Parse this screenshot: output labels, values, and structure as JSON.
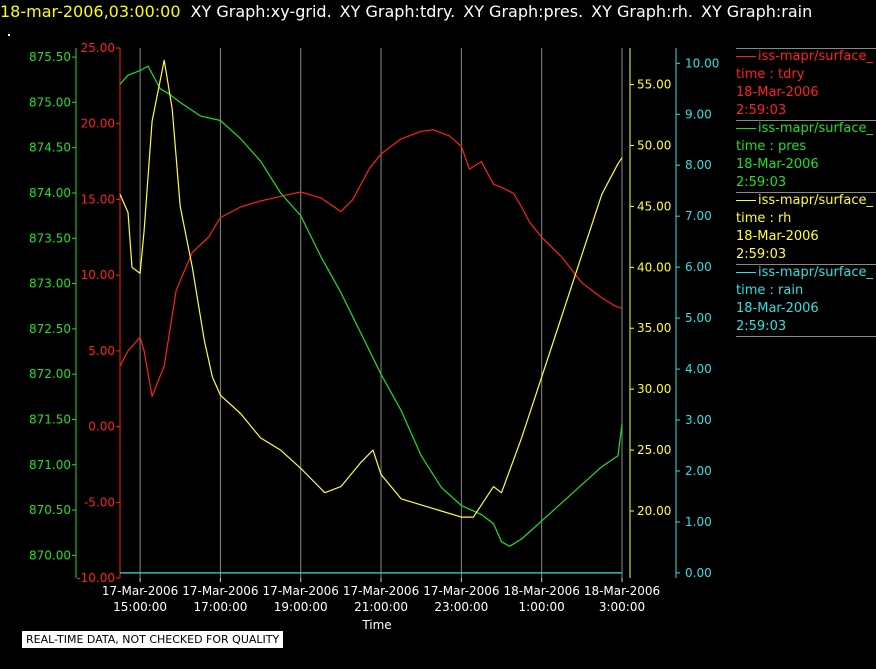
{
  "header": {
    "timestamp": "18-mar-2006,03:00:00",
    "graphs": [
      "XY Graph:xy-grid.",
      "XY Graph:tdry.",
      "XY Graph:pres.",
      "XY Graph:rh.",
      "XY Graph:rain"
    ]
  },
  "footer": {
    "note": "REAL-TIME DATA, NOT CHECKED FOR QUALITY"
  },
  "legend": [
    {
      "source": "iss-mapr/surface_",
      "label": "time : tdry",
      "date": "18-Mar-2006",
      "time": "2:59:03",
      "color": "#ff2020"
    },
    {
      "source": "iss-mapr/surface_",
      "label": "time : pres",
      "date": "18-Mar-2006",
      "time": "2:59:03",
      "color": "#20e020"
    },
    {
      "source": "iss-mapr/surface_",
      "label": "time : rh",
      "date": "18-Mar-2006",
      "time": "2:59:03",
      "color": "#ffff30"
    },
    {
      "source": "iss-mapr/surface_",
      "label": "time : rain",
      "date": "18-Mar-2006",
      "time": "2:59:03",
      "color": "#30e0e0"
    }
  ],
  "chart_data": {
    "type": "line",
    "xlabel": "Time",
    "x_ticks": [
      [
        "17-Mar-2006",
        "15:00:00"
      ],
      [
        "17-Mar-2006",
        "17:00:00"
      ],
      [
        "17-Mar-2006",
        "19:00:00"
      ],
      [
        "17-Mar-2006",
        "21:00:00"
      ],
      [
        "17-Mar-2006",
        "23:00:00"
      ],
      [
        "18-Mar-2006",
        "1:00:00"
      ],
      [
        "18-Mar-2006",
        "3:00:00"
      ]
    ],
    "xlim_hours": [
      14.5,
      27.0
    ],
    "grid": true,
    "legend_position": "right",
    "axes": {
      "pres": {
        "color": "#20e020",
        "ylim": [
          869.75,
          875.6
        ],
        "ticks": [
          "870.00",
          "870.50",
          "871.00",
          "871.50",
          "872.00",
          "872.50",
          "873.00",
          "873.50",
          "874.00",
          "874.50",
          "875.00",
          "875.50"
        ]
      },
      "tdry": {
        "color": "#ff2020",
        "ylim": [
          -10.0,
          25.0
        ],
        "ticks": [
          "-10.00",
          "-5.00",
          "0.00",
          "5.00",
          "10.00",
          "15.00",
          "20.00",
          "25.00"
        ]
      },
      "rh": {
        "color": "#ffff30",
        "ylim": [
          14.5,
          58.0
        ],
        "ticks": [
          "20.00",
          "25.00",
          "30.00",
          "35.00",
          "40.00",
          "45.00",
          "50.00",
          "55.00"
        ]
      },
      "rain": {
        "color": "#30e0e0",
        "ylim": [
          -0.1,
          10.3
        ],
        "ticks": [
          "0.00",
          "1.00",
          "2.00",
          "3.00",
          "4.00",
          "5.00",
          "6.00",
          "7.00",
          "8.00",
          "9.00",
          "10.00"
        ]
      }
    },
    "series": [
      {
        "name": "time : tdry",
        "axis": "tdry",
        "color": "#ff2020",
        "x": [
          14.5,
          14.7,
          15.0,
          15.1,
          15.3,
          15.6,
          15.9,
          16.3,
          16.7,
          17.0,
          17.5,
          18.0,
          18.5,
          19.0,
          19.5,
          20.0,
          20.3,
          20.7,
          21.0,
          21.5,
          22.0,
          22.3,
          22.7,
          23.0,
          23.2,
          23.5,
          23.8,
          24.0,
          24.3,
          24.5,
          24.7,
          25.0,
          25.5,
          26.0,
          26.5,
          26.8,
          27.0
        ],
        "y": [
          4.0,
          5.0,
          5.9,
          5.0,
          2.0,
          4.0,
          9.0,
          11.5,
          12.5,
          13.8,
          14.5,
          14.9,
          15.2,
          15.5,
          15.1,
          14.2,
          15.0,
          17.0,
          18.0,
          19.0,
          19.5,
          19.6,
          19.2,
          18.5,
          17.0,
          17.5,
          16.0,
          15.8,
          15.4,
          14.5,
          13.5,
          12.5,
          11.2,
          9.5,
          8.5,
          8.0,
          7.8
        ]
      },
      {
        "name": "time : pres",
        "axis": "pres",
        "color": "#20e020",
        "x": [
          14.5,
          14.7,
          15.0,
          15.2,
          15.5,
          15.7,
          16.0,
          16.5,
          17.0,
          17.5,
          18.0,
          18.5,
          19.0,
          19.5,
          20.0,
          20.5,
          21.0,
          21.5,
          22.0,
          22.5,
          23.0,
          23.5,
          23.8,
          24.0,
          24.2,
          24.5,
          25.0,
          25.5,
          26.0,
          26.5,
          26.9,
          27.0
        ],
        "y": [
          875.2,
          875.3,
          875.35,
          875.4,
          875.15,
          875.1,
          875.0,
          874.85,
          874.8,
          874.6,
          874.35,
          874.0,
          873.75,
          873.3,
          872.9,
          872.45,
          872.0,
          871.6,
          871.1,
          870.75,
          870.55,
          870.45,
          870.35,
          870.15,
          870.1,
          870.18,
          870.38,
          870.58,
          870.78,
          870.98,
          871.1,
          871.45
        ]
      },
      {
        "name": "time : rh",
        "axis": "rh",
        "color": "#ffff30",
        "x": [
          14.5,
          14.7,
          14.8,
          15.0,
          15.1,
          15.3,
          15.6,
          15.8,
          16.0,
          16.3,
          16.6,
          16.8,
          17.0,
          17.5,
          18.0,
          18.5,
          19.0,
          19.3,
          19.6,
          20.0,
          20.5,
          20.8,
          21.0,
          21.5,
          22.0,
          22.5,
          23.0,
          23.3,
          23.5,
          23.8,
          24.0,
          24.5,
          25.0,
          25.5,
          26.0,
          26.5,
          26.9,
          27.0
        ],
        "y": [
          46.0,
          44.5,
          40.0,
          39.5,
          43.0,
          52.0,
          57.0,
          53.0,
          45.0,
          40.0,
          34.0,
          31.0,
          29.5,
          28.0,
          26.0,
          25.0,
          23.5,
          22.5,
          21.5,
          22.0,
          24.0,
          25.0,
          23.0,
          21.0,
          20.5,
          20.0,
          19.5,
          19.5,
          20.5,
          22.0,
          21.5,
          26.0,
          31.0,
          36.0,
          41.0,
          46.0,
          48.5,
          49.0
        ]
      },
      {
        "name": "time : rain",
        "axis": "rain",
        "color": "#30e0e0",
        "x": [
          14.5,
          27.0
        ],
        "y": [
          0.0,
          0.0
        ]
      }
    ]
  }
}
